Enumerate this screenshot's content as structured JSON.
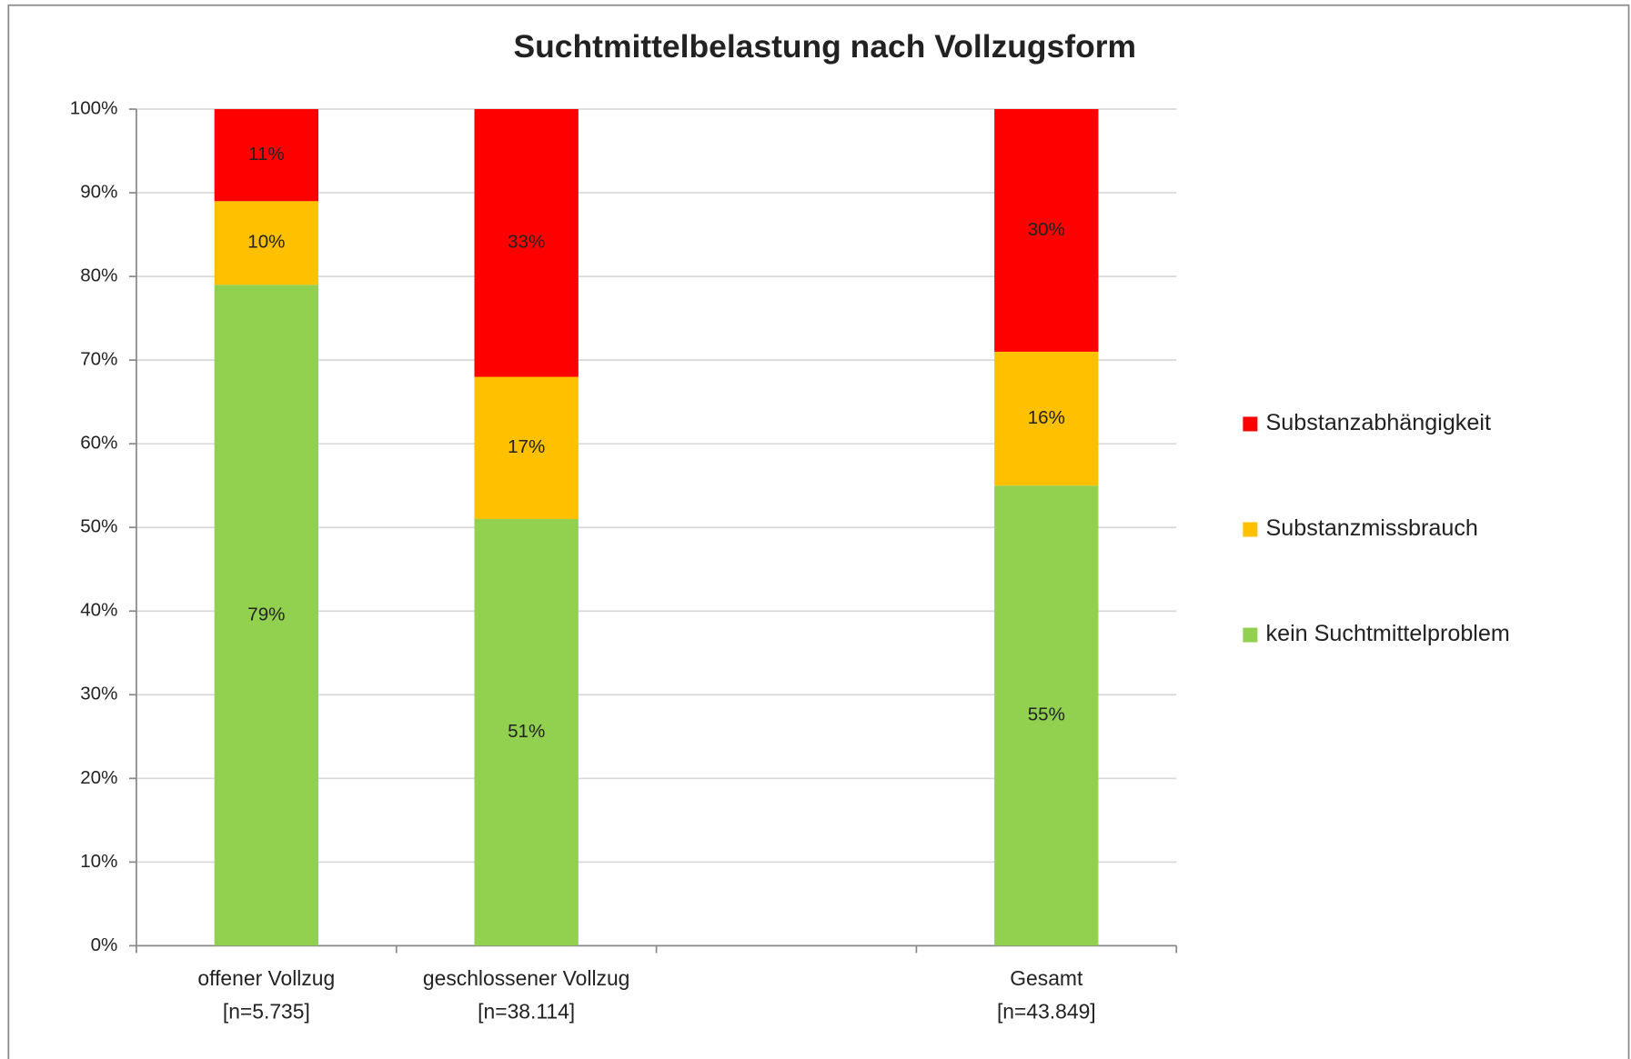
{
  "chart_data": {
    "type": "stacked_bar",
    "title": "Suchtmittelbelastung nach Vollzugsform",
    "categories": [
      [
        "offener Vollzug",
        "[n=5.735]"
      ],
      [
        "geschlossener Vollzug",
        "[n=38.114]"
      ],
      null,
      [
        "Gesamt",
        "[n=43.849]"
      ]
    ],
    "series": [
      {
        "name": "kein Suchtmittelproblem",
        "color": "#92d050",
        "values": [
          79,
          51,
          null,
          55
        ],
        "value_labels": [
          "79%",
          "51%",
          null,
          "55%"
        ]
      },
      {
        "name": "Substanzmissbrauch",
        "color": "#ffc000",
        "values": [
          10,
          17,
          null,
          16
        ],
        "value_labels": [
          "10%",
          "17%",
          null,
          "16%"
        ]
      },
      {
        "name": "Substanzabhängigkeit",
        "color": "#ff0000",
        "values": [
          11,
          33,
          null,
          30
        ],
        "value_labels": [
          "11%",
          "33%",
          null,
          "30%"
        ]
      }
    ],
    "ylim": [
      0,
      100
    ],
    "yticks": [
      {
        "value": 0,
        "label": "0%"
      },
      {
        "value": 10,
        "label": "10%"
      },
      {
        "value": 20,
        "label": "20%"
      },
      {
        "value": 30,
        "label": "30%"
      },
      {
        "value": 40,
        "label": "40%"
      },
      {
        "value": 50,
        "label": "50%"
      },
      {
        "value": 60,
        "label": "60%"
      },
      {
        "value": 70,
        "label": "70%"
      },
      {
        "value": 80,
        "label": "80%"
      },
      {
        "value": 90,
        "label": "90%"
      },
      {
        "value": 100,
        "label": "100%"
      }
    ],
    "grid": true,
    "legend": "right"
  }
}
